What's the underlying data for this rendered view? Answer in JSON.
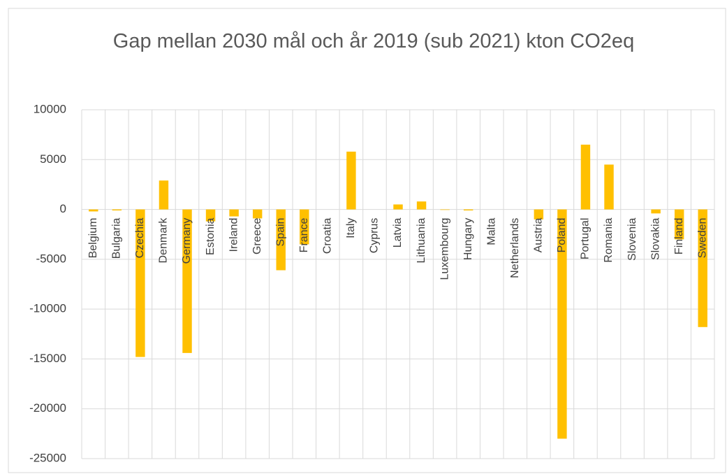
{
  "chart_data": {
    "type": "bar",
    "title": "Gap mellan 2030 mål och år 2019 (sub 2021) kton CO2eq",
    "categories": [
      "Belgium",
      "Bulgaria",
      "Czechia",
      "Denmark",
      "Germany",
      "Estonia",
      "Ireland",
      "Greece",
      "Spain",
      "France",
      "Croatia",
      "Italy",
      "Cyprus",
      "Latvia",
      "Lithuania",
      "Luxembourg",
      "Hungary",
      "Malta",
      "Netherlands",
      "Austria",
      "Poland",
      "Portugal",
      "Romania",
      "Slovenia",
      "Slovakia",
      "Finland",
      "Sweden"
    ],
    "values": [
      -200,
      -100,
      -14800,
      2900,
      -14400,
      -1200,
      -700,
      -900,
      -6100,
      -3500,
      0,
      5800,
      0,
      500,
      800,
      -50,
      -100,
      0,
      0,
      -1000,
      -23000,
      6500,
      4500,
      0,
      -400,
      -3000,
      -11800
    ],
    "color": "#ffc000",
    "ylim": [
      -25000,
      10000
    ],
    "yticks": [
      -25000,
      -20000,
      -15000,
      -10000,
      -5000,
      0,
      5000,
      10000
    ],
    "grid": true
  }
}
